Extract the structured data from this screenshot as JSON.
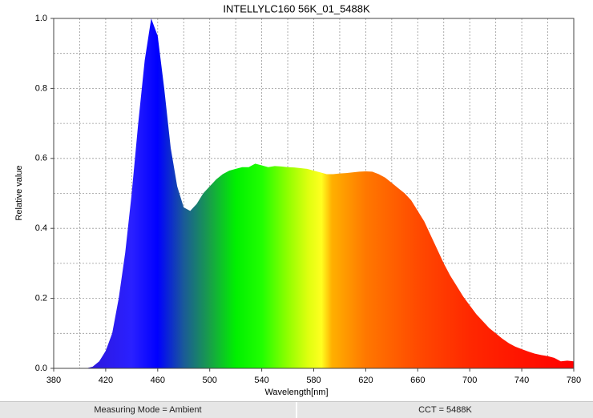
{
  "chart_data": {
    "type": "area",
    "title": "INTELLYLC160 56K_01_5488K",
    "xlabel": "Wavelength[nm]",
    "ylabel": "Relative value",
    "x": [
      380,
      385,
      390,
      395,
      400,
      405,
      410,
      415,
      420,
      425,
      430,
      435,
      440,
      445,
      450,
      455,
      460,
      465,
      470,
      475,
      480,
      485,
      490,
      495,
      500,
      505,
      510,
      515,
      520,
      525,
      530,
      535,
      540,
      545,
      550,
      555,
      560,
      565,
      570,
      575,
      580,
      585,
      590,
      595,
      600,
      605,
      610,
      615,
      620,
      625,
      630,
      635,
      640,
      645,
      650,
      655,
      660,
      665,
      670,
      675,
      680,
      685,
      690,
      695,
      700,
      705,
      710,
      715,
      720,
      725,
      730,
      735,
      740,
      745,
      750,
      755,
      760,
      765,
      770,
      775,
      780
    ],
    "values": [
      0,
      0,
      0,
      0,
      0,
      0,
      0.005,
      0.02,
      0.05,
      0.1,
      0.2,
      0.33,
      0.5,
      0.7,
      0.88,
      1.0,
      0.95,
      0.8,
      0.63,
      0.52,
      0.46,
      0.45,
      0.47,
      0.5,
      0.52,
      0.54,
      0.555,
      0.565,
      0.57,
      0.575,
      0.575,
      0.585,
      0.58,
      0.575,
      0.578,
      0.577,
      0.575,
      0.574,
      0.572,
      0.57,
      0.565,
      0.56,
      0.555,
      0.555,
      0.557,
      0.558,
      0.56,
      0.562,
      0.563,
      0.562,
      0.555,
      0.545,
      0.53,
      0.515,
      0.5,
      0.48,
      0.45,
      0.42,
      0.38,
      0.34,
      0.3,
      0.265,
      0.235,
      0.205,
      0.18,
      0.155,
      0.135,
      0.115,
      0.1,
      0.085,
      0.072,
      0.062,
      0.055,
      0.048,
      0.042,
      0.038,
      0.035,
      0.03,
      0.02,
      0.022,
      0.02
    ],
    "xlim": [
      380,
      780
    ],
    "ylim": [
      0,
      1
    ],
    "xticks": [
      380,
      420,
      460,
      500,
      540,
      580,
      620,
      660,
      700,
      740,
      780
    ],
    "xgrid": [
      400,
      420,
      440,
      460,
      480,
      500,
      520,
      540,
      560,
      580,
      600,
      620,
      640,
      660,
      680,
      700,
      720,
      740,
      760
    ],
    "yticks": [
      {
        "value": 0,
        "label": "0.0"
      },
      0.2,
      0.4,
      0.6,
      0.8,
      {
        "value": 1,
        "label": "1.0"
      }
    ],
    "ygrid": [
      0.1,
      0.2,
      0.3,
      0.4,
      0.5,
      0.6,
      0.7,
      0.8,
      0.9
    ],
    "grid": true
  },
  "status_bar": [
    "Measuring Mode = Ambient",
    "CCT = 5488K"
  ]
}
